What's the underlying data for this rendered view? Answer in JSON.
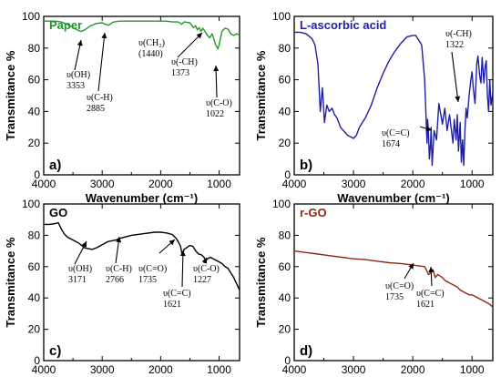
{
  "chart_data": [
    {
      "type": "line",
      "panel_tag": "a)",
      "title": "Paper",
      "xlabel": "Wavenumber (cm⁻¹)",
      "ylabel": "Transmitance %",
      "xlim": [
        4000,
        650
      ],
      "ylim": [
        0,
        100
      ],
      "xticks": [
        4000,
        3000,
        2000,
        1000
      ],
      "yticks": [
        0,
        20,
        40,
        60,
        80,
        100
      ],
      "color": "#1f9a2a",
      "series": [
        {
          "name": "Paper",
          "x": [
            4000,
            3900,
            3800,
            3700,
            3600,
            3500,
            3400,
            3353,
            3300,
            3200,
            3100,
            3000,
            2950,
            2885,
            2850,
            2800,
            2700,
            2500,
            2300,
            2100,
            2000,
            1900,
            1800,
            1700,
            1640,
            1600,
            1500,
            1440,
            1400,
            1373,
            1340,
            1310,
            1280,
            1250,
            1200,
            1160,
            1120,
            1100,
            1060,
            1040,
            1022,
            1000,
            980,
            950,
            900,
            850,
            800,
            750,
            700,
            650
          ],
          "y": [
            97,
            97,
            97,
            96.5,
            95,
            93,
            91,
            90.5,
            91.5,
            94,
            95.5,
            96,
            95,
            94.5,
            95.5,
            96.5,
            97,
            97,
            97,
            97,
            97,
            97,
            96.5,
            96.5,
            95,
            96.5,
            96,
            93,
            94,
            91.5,
            93,
            90.5,
            92.5,
            91,
            88,
            86.5,
            89,
            87,
            82,
            81,
            79.5,
            82,
            85.5,
            90.5,
            92.5,
            92,
            89,
            88,
            89,
            88
          ]
        }
      ],
      "annotations": [
        {
          "lines": [
            "υ(OH)",
            "3353"
          ]
        },
        {
          "lines": [
            "υ(C-H)",
            "2885"
          ]
        },
        {
          "lines": [
            "υ(CH₂)",
            "(1440)"
          ]
        },
        {
          "lines": [
            "υ(-CH)",
            "1373"
          ]
        },
        {
          "lines": [
            "υ(C-O)",
            "1022"
          ]
        }
      ]
    },
    {
      "type": "line",
      "panel_tag": "b)",
      "title": "L-ascorbic acid",
      "xlabel": "Wavenumber (cm⁻¹)",
      "ylabel": "Transmitance %",
      "xlim": [
        4000,
        650
      ],
      "ylim": [
        0,
        100
      ],
      "xticks": [
        4000,
        3000,
        2000,
        1000
      ],
      "yticks": [
        0,
        20,
        40,
        60,
        80,
        100
      ],
      "color": "#1f1fa5",
      "series": [
        {
          "name": "L-ascorbic acid",
          "x": [
            4000,
            3900,
            3800,
            3700,
            3650,
            3600,
            3560,
            3525,
            3490,
            3450,
            3410,
            3360,
            3320,
            3280,
            3220,
            3100,
            3000,
            2950,
            2900,
            2800,
            2700,
            2600,
            2500,
            2400,
            2300,
            2200,
            2100,
            2000,
            1950,
            1900,
            1850,
            1800,
            1760,
            1750,
            1740,
            1720,
            1700,
            1690,
            1674,
            1660,
            1640,
            1600,
            1560,
            1500,
            1460,
            1420,
            1380,
            1322,
            1300,
            1270,
            1250,
            1230,
            1200,
            1180,
            1160,
            1140,
            1120,
            1100,
            1080,
            1050,
            1020,
            1000,
            980,
            950,
            920,
            900,
            870,
            850,
            830,
            800,
            780,
            760,
            740,
            720,
            700,
            680,
            650
          ],
          "y": [
            90,
            90,
            89,
            86,
            82,
            70,
            40,
            55,
            33,
            44,
            40,
            42,
            38,
            36,
            30,
            25,
            23,
            25,
            30,
            36,
            44,
            55,
            64,
            72,
            78,
            83,
            87,
            88,
            88,
            85,
            82,
            60,
            20,
            35,
            30,
            10,
            20,
            30,
            6,
            15,
            28,
            22,
            45,
            32,
            42,
            28,
            38,
            20,
            35,
            22,
            38,
            15,
            33,
            8,
            22,
            6,
            28,
            42,
            36,
            50,
            60,
            65,
            55,
            45,
            70,
            75,
            62,
            58,
            74,
            58,
            68,
            72,
            50,
            40,
            60,
            44,
            52
          ]
        }
      ],
      "annotations": [
        {
          "lines": [
            "υ(-CH)",
            "1322"
          ]
        },
        {
          "lines": [
            "υ(C=C)",
            "1674"
          ]
        }
      ]
    },
    {
      "type": "line",
      "panel_tag": "c)",
      "title": "GO",
      "xlabel": "Wavenumber (cm⁻¹)",
      "ylabel": "Transmitance %",
      "xlim": [
        4000,
        650
      ],
      "ylim": [
        0,
        100
      ],
      "xticks": [
        4000,
        3000,
        2000,
        1000
      ],
      "yticks": [
        0,
        20,
        40,
        60,
        80,
        100
      ],
      "color": "#000000",
      "series": [
        {
          "name": "GO",
          "x": [
            4000,
            3900,
            3800,
            3750,
            3700,
            3650,
            3600,
            3500,
            3400,
            3300,
            3171,
            3100,
            3000,
            2900,
            2766,
            2700,
            2500,
            2300,
            2100,
            2000,
            1900,
            1850,
            1800,
            1760,
            1735,
            1700,
            1660,
            1640,
            1621,
            1600,
            1560,
            1500,
            1450,
            1400,
            1350,
            1300,
            1260,
            1227,
            1200,
            1150,
            1100,
            1050,
            1000,
            950,
            900,
            850,
            800,
            750,
            700,
            650
          ],
          "y": [
            87,
            87,
            87.5,
            88,
            84,
            81,
            79,
            77,
            75,
            72,
            71,
            72,
            74,
            76,
            77,
            78,
            80,
            81,
            82,
            82,
            81.5,
            81,
            80.5,
            79,
            78,
            76,
            73,
            69,
            68,
            71,
            72,
            73.5,
            73,
            70,
            68,
            67.5,
            66,
            64,
            65,
            66,
            65,
            64,
            63,
            62,
            60,
            59,
            56,
            53,
            49,
            45
          ]
        }
      ],
      "annotations": [
        {
          "lines": [
            "υ(OH)",
            "3171"
          ]
        },
        {
          "lines": [
            "υ(C-H)",
            "2766"
          ]
        },
        {
          "lines": [
            "υ(C=O)",
            "1735"
          ]
        },
        {
          "lines": [
            "υ(C=C)",
            "1621"
          ]
        },
        {
          "lines": [
            "υ(C-O)",
            "1227"
          ]
        }
      ]
    },
    {
      "type": "line",
      "panel_tag": "d)",
      "title": "r-GO",
      "xlabel": "Wavenumber (cm⁻¹)",
      "ylabel": "Transmitance %",
      "xlim": [
        4000,
        650
      ],
      "ylim": [
        0,
        100
      ],
      "xticks": [
        4000,
        3000,
        2000,
        1000
      ],
      "yticks": [
        0,
        20,
        40,
        60,
        80,
        100
      ],
      "color": "#8b2a12",
      "series": [
        {
          "name": "r-GO",
          "x": [
            4000,
            3800,
            3600,
            3400,
            3200,
            3000,
            2800,
            2600,
            2400,
            2200,
            2000,
            1900,
            1800,
            1760,
            1735,
            1700,
            1660,
            1640,
            1621,
            1580,
            1540,
            1500,
            1450,
            1400,
            1350,
            1300,
            1250,
            1200,
            1150,
            1100,
            1050,
            1000,
            950,
            900,
            850,
            800,
            750,
            700,
            650
          ],
          "y": [
            70,
            69,
            68,
            67,
            66,
            65,
            64.5,
            63.5,
            62.5,
            62,
            61,
            60.5,
            60,
            57,
            55,
            56,
            58,
            55.5,
            53,
            55,
            54,
            53,
            51,
            50,
            49,
            48,
            47,
            45,
            44,
            43,
            42,
            42,
            41,
            40,
            39,
            38,
            37,
            36,
            34
          ]
        }
      ],
      "annotations": [
        {
          "lines": [
            "υ(C=O)",
            "1735"
          ]
        },
        {
          "lines": [
            "υ(C=C)",
            "1621"
          ]
        }
      ]
    }
  ]
}
